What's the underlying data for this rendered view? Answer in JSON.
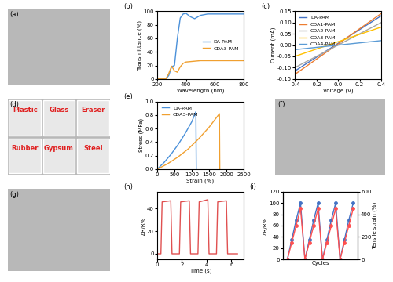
{
  "chart_data": [
    {
      "type": "image",
      "title": "(a)"
    },
    {
      "type": "line",
      "title": "(b)",
      "x_label": "Wavelength (nm)",
      "y_label": "Transmittance (%)",
      "xlim": [
        200,
        800
      ],
      "xticks": [
        200,
        400,
        600,
        800
      ],
      "ylim": [
        0,
        100
      ],
      "yticks": [
        0,
        20,
        40,
        60,
        80,
        100
      ],
      "legend": "center right",
      "series": [
        {
          "name": "DA-PAM",
          "color": "#4a90d9",
          "x": [
            200,
            260,
            280,
            300,
            320,
            340,
            360,
            380,
            400,
            430,
            460,
            500,
            550,
            600,
            700,
            800
          ],
          "values": [
            0,
            0,
            5,
            18,
            20,
            60,
            90,
            96,
            97,
            92,
            89,
            94,
            96,
            96,
            96,
            96
          ]
        },
        {
          "name": "CDA3-PAM",
          "color": "#f0a030",
          "x": [
            200,
            260,
            280,
            300,
            320,
            340,
            360,
            380,
            400,
            450,
            500,
            600,
            700,
            800
          ],
          "values": [
            0,
            0,
            8,
            19,
            12,
            10,
            18,
            23,
            25,
            26,
            27,
            27,
            27,
            27
          ]
        }
      ]
    },
    {
      "type": "line",
      "title": "(c)",
      "x_label": "Voltage (V)",
      "y_label": "Current (mA)",
      "xlim": [
        -0.4,
        0.4
      ],
      "xticks": [
        -0.4,
        -0.2,
        {
          "value": 0,
          "label": "0.0"
        },
        0.2,
        0.4
      ],
      "ylim": [
        -0.15,
        0.15
      ],
      "yticks": [
        -0.15,
        {
          "value": -0.1,
          "label": "-0.10"
        },
        -0.05,
        {
          "value": 0,
          "label": "0.00"
        },
        0.05,
        {
          "value": 0.1,
          "label": "0.10"
        },
        0.15
      ],
      "legend": "upper left",
      "series": [
        {
          "name": "DA-PAM",
          "color": "#4472c4",
          "x": [
            -0.4,
            0.4
          ],
          "values": [
            -0.115,
            0.13
          ]
        },
        {
          "name": "CDA1-PAM",
          "color": "#ed7d31",
          "x": [
            -0.4,
            0.4
          ],
          "values": [
            -0.13,
            0.14
          ]
        },
        {
          "name": "CDA2-PAM",
          "color": "#a5a5a5",
          "x": [
            -0.4,
            0.4
          ],
          "values": [
            -0.1,
            0.1
          ]
        },
        {
          "name": "CDA3-PAM",
          "color": "#ffc000",
          "x": [
            -0.4,
            0.4
          ],
          "values": [
            -0.05,
            0.08
          ]
        },
        {
          "name": "CDA4-PAM",
          "color": "#5b9bd5",
          "x": [
            -0.4,
            0.4
          ],
          "values": [
            -0.02,
            0.02
          ]
        }
      ]
    },
    {
      "type": "image",
      "title": "(d)",
      "annotations": [
        "Plastic",
        "Glass",
        "Eraser",
        "Rubber",
        "Gypsum",
        "Steel"
      ],
      "color": "#e02020"
    },
    {
      "type": "line",
      "title": "(e)",
      "x_label": "Strain (%)",
      "y_label": "Stress (MPa)",
      "xlim": [
        0,
        2500
      ],
      "xticks": [
        0,
        500,
        1000,
        1500,
        2000,
        2500
      ],
      "ylim": [
        0,
        1.0
      ],
      "yticks": [
        {
          "value": 0,
          "label": "0.0"
        },
        0.2,
        0.4,
        0.6,
        0.8,
        1.0
      ],
      "legend": "upper left",
      "series": [
        {
          "name": "DA-PAM",
          "color": "#4a90d9",
          "x": [
            0,
            200,
            400,
            600,
            800,
            1000,
            1120,
            1130
          ],
          "values": [
            0,
            0.1,
            0.22,
            0.36,
            0.52,
            0.7,
            0.85,
            0
          ]
        },
        {
          "name": "CDA3-PAM",
          "color": "#f0a030",
          "x": [
            0,
            300,
            600,
            900,
            1200,
            1500,
            1800,
            1810
          ],
          "values": [
            0,
            0.08,
            0.18,
            0.3,
            0.45,
            0.62,
            0.82,
            0
          ]
        }
      ]
    },
    {
      "type": "image",
      "title": "(f)"
    },
    {
      "type": "image",
      "title": "(g)"
    },
    {
      "type": "line",
      "title": "(h)",
      "x_label": "Time (s)",
      "y_label": "ΔR/R%",
      "xlim": [
        0,
        7
      ],
      "xticks": [
        0,
        2,
        4,
        6
      ],
      "ylim": [
        -5,
        55
      ],
      "yticks": [
        0,
        20,
        40
      ],
      "series": [
        {
          "name": "ΔR/R%",
          "color": "#e05050",
          "x": [
            0,
            0.3,
            0.4,
            1.1,
            1.2,
            1.8,
            1.9,
            2.6,
            2.7,
            3.3,
            3.4,
            4.1,
            4.2,
            4.8,
            4.9,
            5.6,
            5.7,
            6.5
          ],
          "values": [
            0,
            0,
            46,
            47,
            0,
            0,
            46,
            47,
            0,
            0,
            46,
            48,
            0,
            0,
            46,
            47,
            0,
            0
          ]
        }
      ]
    },
    {
      "type": "line",
      "title": "(i)",
      "x_label": "Cycles",
      "y_label": "ΔR/R%",
      "y2_label": "Tensile strain (%)",
      "tick_labels": "y",
      "xlim": [
        -1,
        16
      ],
      "xticks": [],
      "ylim": [
        0,
        120
      ],
      "yticks": [
        0,
        20,
        40,
        60,
        80,
        100,
        120
      ],
      "y2lim": [
        0,
        600
      ],
      "y2ticks": [
        0,
        200,
        400,
        600
      ],
      "series": [
        {
          "name": "ΔR/R%",
          "color": "#4472c4",
          "marker": "o",
          "x": [
            0,
            1,
            2,
            3,
            4,
            5,
            6,
            7,
            8,
            9,
            10,
            11,
            12,
            13,
            14,
            15
          ],
          "values": [
            0,
            35,
            70,
            100,
            0,
            35,
            70,
            100,
            0,
            35,
            70,
            100,
            0,
            35,
            70,
            100
          ]
        },
        {
          "name": "Tensile strain (%)",
          "color": "#ff5050",
          "marker": "o",
          "axis": "y2",
          "x": [
            0,
            1,
            2,
            3,
            4,
            5,
            6,
            7,
            8,
            9,
            10,
            11,
            12,
            13,
            14,
            15
          ],
          "values": [
            0,
            150,
            300,
            450,
            0,
            150,
            300,
            450,
            0,
            150,
            300,
            450,
            0,
            150,
            300,
            450
          ]
        }
      ]
    }
  ]
}
